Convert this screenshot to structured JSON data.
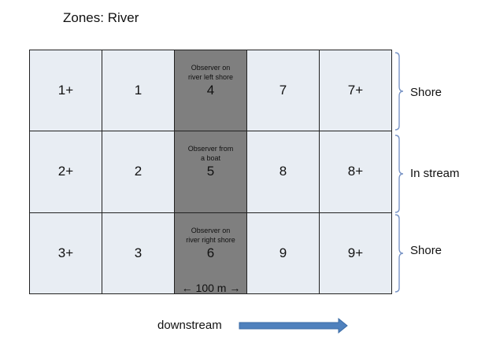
{
  "title": "Zones: River",
  "cells": [
    {
      "label": "1+",
      "dark": false,
      "observer": ""
    },
    {
      "label": "1",
      "dark": false,
      "observer": ""
    },
    {
      "label": "4",
      "dark": true,
      "observer": "Observer on\nriver left shore"
    },
    {
      "label": "7",
      "dark": false,
      "observer": ""
    },
    {
      "label": "7+",
      "dark": false,
      "observer": ""
    },
    {
      "label": "2+",
      "dark": false,
      "observer": ""
    },
    {
      "label": "2",
      "dark": false,
      "observer": ""
    },
    {
      "label": "5",
      "dark": true,
      "observer": "Observer from\na boat"
    },
    {
      "label": "8",
      "dark": false,
      "observer": ""
    },
    {
      "label": "8+",
      "dark": false,
      "observer": ""
    },
    {
      "label": "3+",
      "dark": false,
      "observer": ""
    },
    {
      "label": "3",
      "dark": false,
      "observer": ""
    },
    {
      "label": "6",
      "dark": true,
      "observer": "Observer on\nriver right shore"
    },
    {
      "label": "9",
      "dark": false,
      "observer": ""
    },
    {
      "label": "9+",
      "dark": false,
      "observer": ""
    }
  ],
  "distance_label": "← 100 m →",
  "zones": [
    "Shore",
    "In stream",
    "Shore"
  ],
  "direction_label": "downstream",
  "colors": {
    "cell": "#e8edf3",
    "observer_column": "#7f7f7f",
    "brace": "#7a95c6",
    "arrow": "#4f81bd"
  }
}
